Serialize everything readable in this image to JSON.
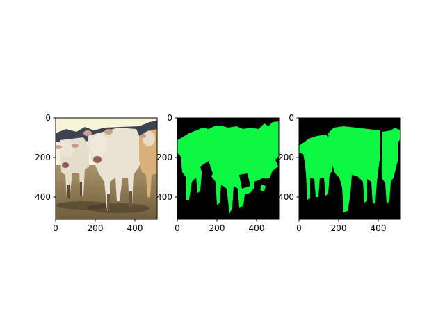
{
  "figure": {
    "panels": [
      {
        "name": "photo",
        "content": "Photograph of cattle standing in a field",
        "x_ticks": [
          "0",
          "200",
          "400"
        ],
        "y_ticks": [
          "0",
          "200",
          "400"
        ]
      },
      {
        "name": "predicted-mask",
        "content": "Green segmentation mask of cattle on black background",
        "x_ticks": [
          "0",
          "200",
          "400"
        ],
        "y_ticks": [
          "0",
          "200",
          "400"
        ]
      },
      {
        "name": "ground-truth-mask",
        "content": "Green segmentation mask of cattle on black background",
        "x_ticks": [
          "0",
          "200",
          "400"
        ],
        "y_ticks": [
          "0",
          "200",
          "400"
        ]
      }
    ],
    "colors": {
      "mask": "#0cf842",
      "mask_background": "#000000",
      "sky": "#f8f4d8",
      "cow": "#e8e2d2",
      "ground": "#8c7a55"
    }
  }
}
